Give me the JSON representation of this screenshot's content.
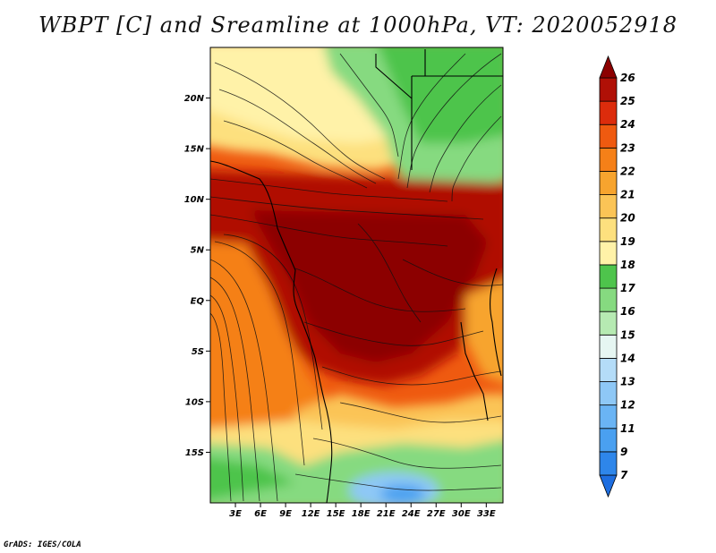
{
  "title": "WBPT [C] and Sreamline at 1000hPa, VT: 2020052918",
  "credit": "GrADS: IGES/COLA",
  "map": {
    "variable": "Wet-bulb potential temperature",
    "units": "C",
    "level": "1000hPa",
    "valid_time": "2020052918",
    "lat_range": [
      -20.0,
      25.0
    ],
    "lon_range": [
      0.0,
      35.0
    ],
    "lat_ticks": [
      {
        "value": 20,
        "label": "20N"
      },
      {
        "value": 15,
        "label": "15N"
      },
      {
        "value": 10,
        "label": "10N"
      },
      {
        "value": 5,
        "label": "5N"
      },
      {
        "value": 0,
        "label": "EQ"
      },
      {
        "value": -5,
        "label": "5S"
      },
      {
        "value": -10,
        "label": "10S"
      },
      {
        "value": -15,
        "label": "15S"
      }
    ],
    "lon_ticks": [
      {
        "value": 3,
        "label": "3E"
      },
      {
        "value": 6,
        "label": "6E"
      },
      {
        "value": 9,
        "label": "9E"
      },
      {
        "value": 12,
        "label": "12E"
      },
      {
        "value": 15,
        "label": "15E"
      },
      {
        "value": 18,
        "label": "18E"
      },
      {
        "value": 21,
        "label": "21E"
      },
      {
        "value": 24,
        "label": "24E"
      },
      {
        "value": 27,
        "label": "27E"
      },
      {
        "value": 30,
        "label": "30E"
      },
      {
        "value": 33,
        "label": "33E"
      }
    ]
  },
  "colorbar": {
    "levels": [
      "7",
      "9",
      "11",
      "12",
      "13",
      "14",
      "15",
      "16",
      "17",
      "18",
      "19",
      "20",
      "21",
      "22",
      "23",
      "24",
      "25",
      "26"
    ],
    "colors": [
      "#1e6ee0",
      "#2e86ea",
      "#4aa0f0",
      "#6ab4f4",
      "#8ec8f6",
      "#b4dcf8",
      "#e6f6f2",
      "#b6eab2",
      "#86da80",
      "#4ec44c",
      "#fff2a8",
      "#fde07e",
      "#fbc456",
      "#f7a42e",
      "#f58018",
      "#ef5a10",
      "#dc2c0c",
      "#b01006",
      "#8c0000"
    ]
  }
}
